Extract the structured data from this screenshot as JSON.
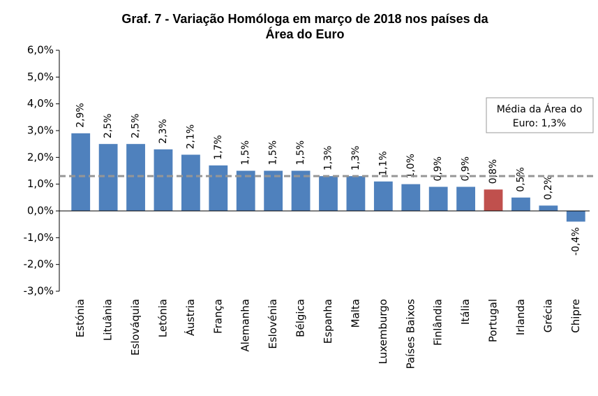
{
  "chart_data": {
    "type": "bar",
    "title": [
      "Graf. 7 - Variação Homóloga em março de 2018 nos países da",
      "Área do Euro"
    ],
    "categories": [
      "Estónia",
      "Lituânia",
      "Eslováquia",
      "Letónia",
      "Áustria",
      "França",
      "Alemanha",
      "Eslovénia",
      "Bélgica",
      "Espanha",
      "Malta",
      "Luxemburgo",
      "Países Baixos",
      "Finlândia",
      "Itália",
      "Portugal",
      "Irlanda",
      "Grécia",
      "Chipre"
    ],
    "values": [
      2.9,
      2.5,
      2.5,
      2.3,
      2.1,
      1.7,
      1.5,
      1.5,
      1.5,
      1.3,
      1.3,
      1.1,
      1.0,
      0.9,
      0.9,
      0.8,
      0.5,
      0.2,
      -0.4
    ],
    "value_labels": [
      "2,9%",
      "2,5%",
      "2,5%",
      "2,3%",
      "2,1%",
      "1,7%",
      "1,5%",
      "1,5%",
      "1,5%",
      "1,3%",
      "1,3%",
      "1,1%",
      "1,0%",
      "0,9%",
      "0,9%",
      "0,8%",
      "0,5%",
      "0,2%",
      "-0,4%"
    ],
    "colors": [
      "#4f81bd",
      "#4f81bd",
      "#4f81bd",
      "#4f81bd",
      "#4f81bd",
      "#4f81bd",
      "#4f81bd",
      "#4f81bd",
      "#4f81bd",
      "#4f81bd",
      "#4f81bd",
      "#4f81bd",
      "#4f81bd",
      "#4f81bd",
      "#4f81bd",
      "#c0504d",
      "#4f81bd",
      "#4f81bd",
      "#4f81bd"
    ],
    "ylim": [
      -3.0,
      6.0
    ],
    "yticks": [
      {
        "value": -3.0,
        "label": "-3,0%"
      },
      {
        "value": -2.0,
        "label": "-2,0%"
      },
      {
        "value": -1.0,
        "label": "-1,0%"
      },
      {
        "value": 0.0,
        "label": "0,0%"
      },
      {
        "value": 1.0,
        "label": "1,0%"
      },
      {
        "value": 2.0,
        "label": "2,0%"
      },
      {
        "value": 3.0,
        "label": "3,0%"
      },
      {
        "value": 4.0,
        "label": "4,0%"
      },
      {
        "value": 5.0,
        "label": "5,0%"
      },
      {
        "value": 6.0,
        "label": "6,0%"
      }
    ],
    "reference_line": {
      "value": 1.3,
      "color": "#969696",
      "label": [
        "Média da Área do",
        "Euro: 1,3%"
      ]
    }
  }
}
